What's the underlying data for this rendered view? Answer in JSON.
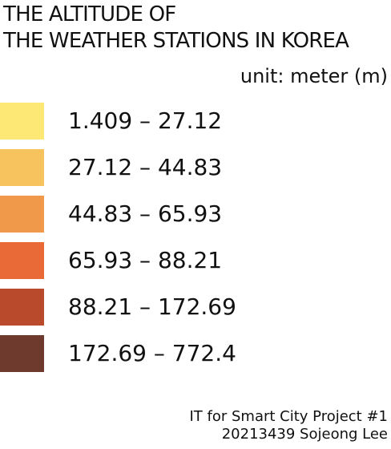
{
  "legend": {
    "title_line1": "THE ALTITUDE OF",
    "title_line2": "THE WEATHER STATIONS IN KOREA",
    "unit": "unit: meter (m)",
    "items": [
      {
        "label": "1.409 – 27.12",
        "color": "#fde876"
      },
      {
        "label": "27.12 – 44.83",
        "color": "#f6c35f"
      },
      {
        "label": "44.83 – 65.93",
        "color": "#f0994a"
      },
      {
        "label": "65.93 – 88.21",
        "color": "#e96a36"
      },
      {
        "label": "88.21 – 172.69",
        "color": "#b94a2b"
      },
      {
        "label": "172.69 – 772.4",
        "color": "#6e3a2d"
      }
    ]
  },
  "footer": {
    "line1": "IT for Smart City Project #1",
    "line2": "20213439 Sojeong Lee"
  }
}
